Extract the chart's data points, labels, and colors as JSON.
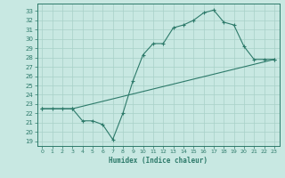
{
  "xlabel": "Humidex (Indice chaleur)",
  "bg_color": "#c8e8e2",
  "line_color": "#2d7a6a",
  "grid_color": "#a8d0c8",
  "xlim": [
    -0.5,
    23.5
  ],
  "ylim": [
    18.5,
    33.8
  ],
  "yticks": [
    19,
    20,
    21,
    22,
    23,
    24,
    25,
    26,
    27,
    28,
    29,
    30,
    31,
    32,
    33
  ],
  "xticks": [
    0,
    1,
    2,
    3,
    4,
    5,
    6,
    7,
    8,
    9,
    10,
    11,
    12,
    13,
    14,
    15,
    16,
    17,
    18,
    19,
    20,
    21,
    22,
    23
  ],
  "line1_x": [
    0,
    1,
    2,
    3,
    4,
    5,
    6,
    7,
    8,
    9,
    10,
    11,
    12,
    13,
    14,
    15,
    16,
    17,
    18,
    19,
    20,
    21,
    22,
    23
  ],
  "line1_y": [
    22.5,
    22.5,
    22.5,
    22.5,
    21.2,
    21.2,
    20.8,
    19.2,
    22.0,
    25.5,
    28.3,
    29.5,
    29.5,
    31.2,
    31.5,
    32.0,
    32.8,
    33.1,
    31.8,
    31.5,
    29.2,
    27.8,
    27.8,
    27.8
  ],
  "line2_x": [
    0,
    3,
    23
  ],
  "line2_y": [
    22.5,
    22.5,
    27.8
  ]
}
